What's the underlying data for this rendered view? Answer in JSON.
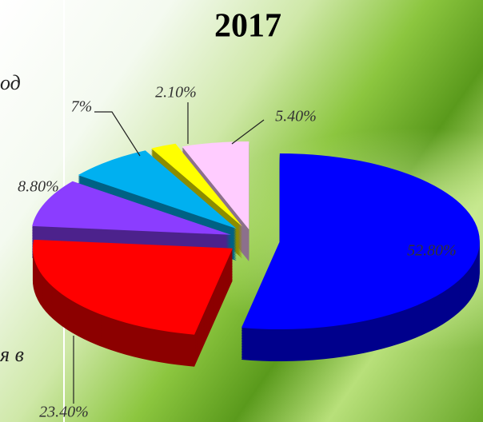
{
  "chart_data": {
    "type": "pie",
    "title": "2017",
    "values": [
      52.8,
      23.4,
      8.8,
      7,
      2.1,
      5.4
    ],
    "value_labels": [
      "52.80%",
      "23.40%",
      "8.80%",
      "7%",
      "2.10%",
      "5.40%"
    ],
    "colors": [
      "#0000ff",
      "#ff0000",
      "#8b3dff",
      "#00b0f0",
      "#ffff00",
      "#ffccff"
    ]
  },
  "slide_fragments": [
    "од",
    "я в"
  ]
}
